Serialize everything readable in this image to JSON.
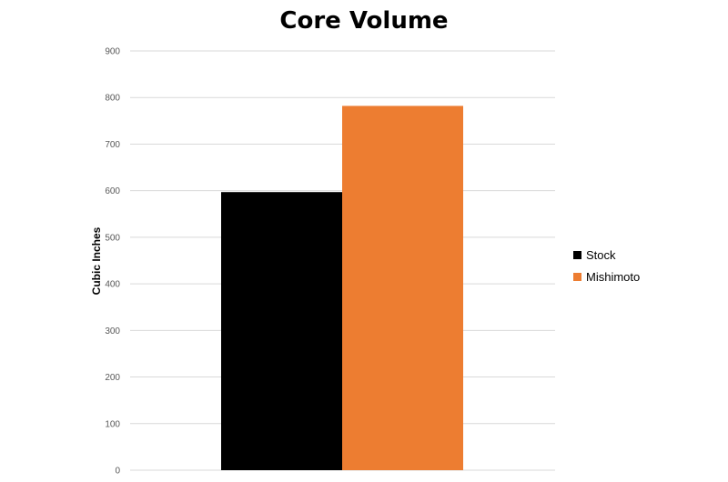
{
  "chart_data": {
    "type": "bar",
    "title": "Core Volume",
    "xlabel": "",
    "ylabel": "Cubic Inches",
    "categories": [
      ""
    ],
    "series": [
      {
        "name": "Stock",
        "values": [
          597
        ],
        "color": "#000000"
      },
      {
        "name": "Mishimoto",
        "values": [
          782
        ],
        "color": "#ED7D31"
      }
    ],
    "ylim": [
      0,
      900
    ],
    "yticks": [
      0,
      100,
      200,
      300,
      400,
      500,
      600,
      700,
      800,
      900
    ],
    "grid": true,
    "legend_position": "right"
  }
}
